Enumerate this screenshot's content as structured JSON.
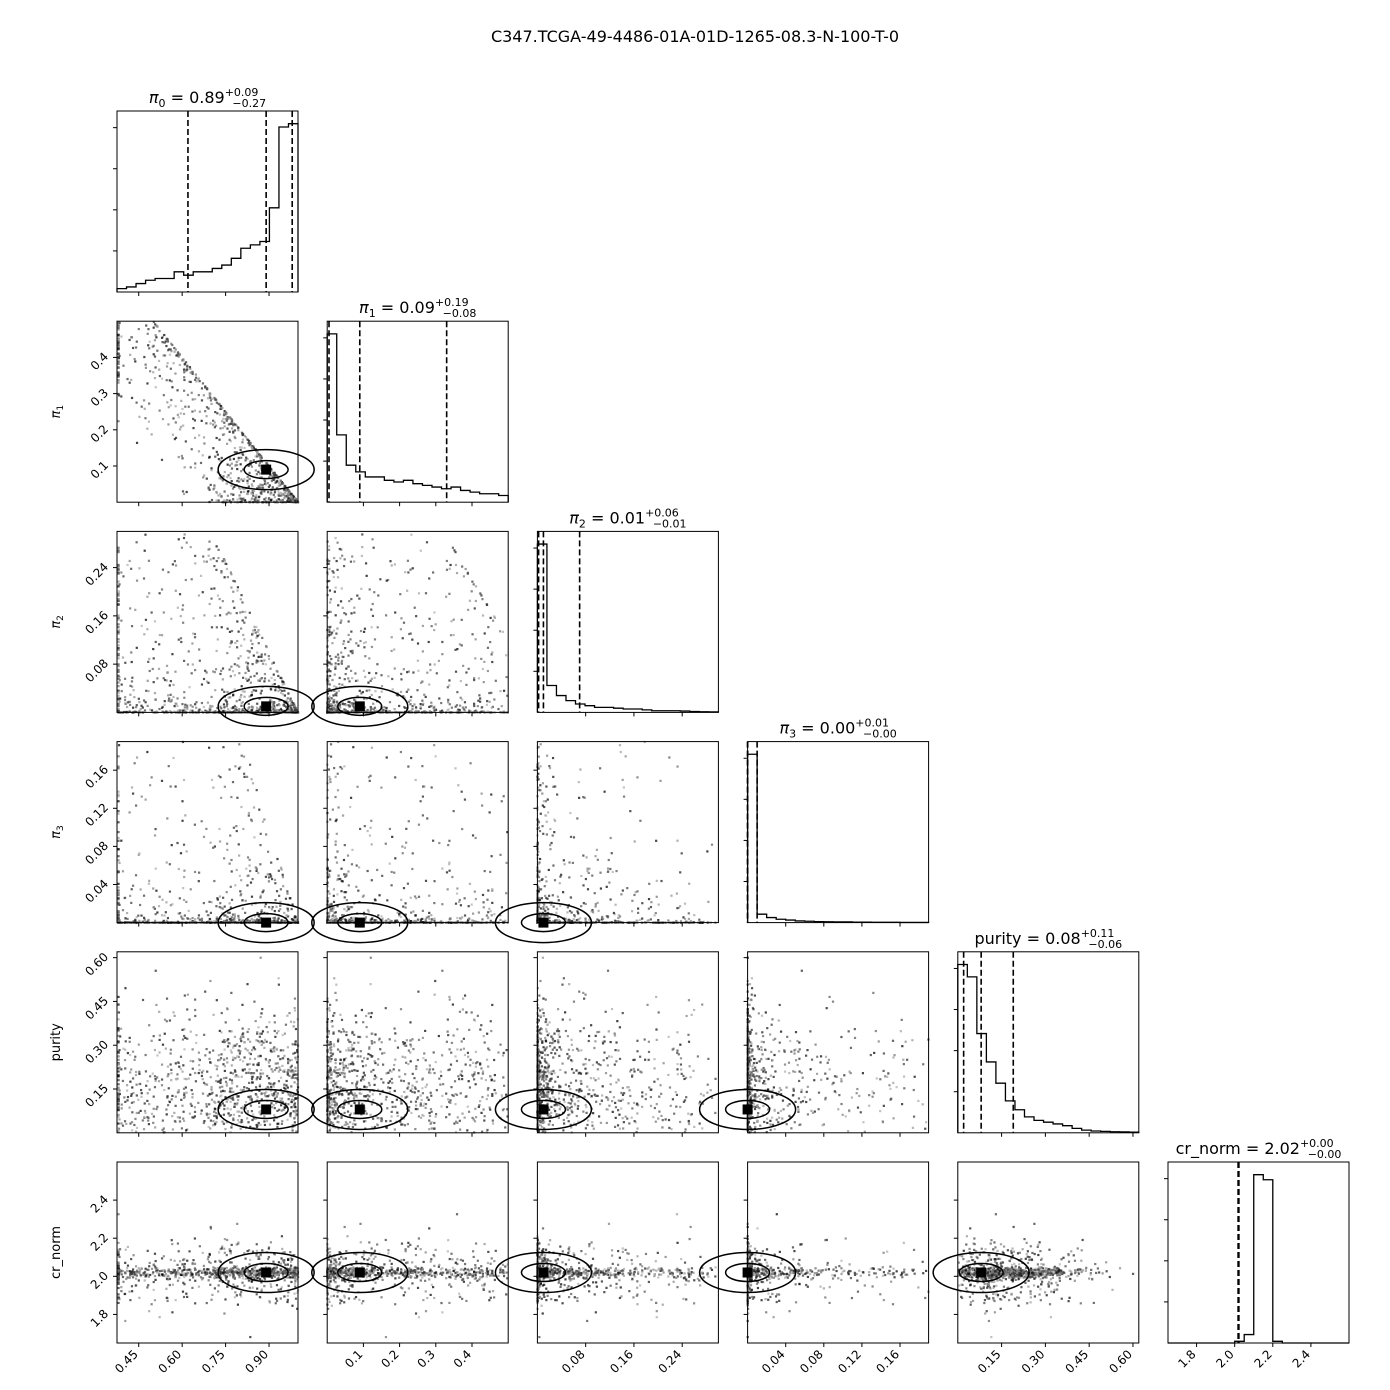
{
  "figure": {
    "title": "C347.TCGA-49-4486-01A-01D-1265-08.3-N-100-T-0"
  },
  "chart_data": {
    "type": "corner",
    "parameters": [
      {
        "key": "pi0",
        "symbol": "π",
        "sub": "0",
        "label": "π0",
        "range": [
          0.375,
          1.0
        ],
        "ticks": [
          0.45,
          0.6,
          0.75,
          0.9
        ],
        "tick_labels": [
          "0.45",
          "0.60",
          "0.75",
          "0.90"
        ],
        "median": "0.89",
        "plus": "+0.09",
        "minus": "−0.27",
        "quantiles": [
          0.62,
          0.89,
          0.98
        ],
        "hist": [
          0.02,
          0.03,
          0.05,
          0.07,
          0.08,
          0.08,
          0.12,
          0.1,
          0.12,
          0.12,
          0.14,
          0.16,
          0.2,
          0.26,
          0.28,
          0.3,
          0.5,
          0.98,
          1.0
        ]
      },
      {
        "key": "pi1",
        "symbol": "π",
        "sub": "1",
        "label": "π1",
        "range": [
          0.0,
          0.5
        ],
        "ticks": [
          0.1,
          0.2,
          0.3,
          0.4
        ],
        "tick_labels": [
          "0.1",
          "0.2",
          "0.3",
          "0.4"
        ],
        "median": "0.09",
        "plus": "+0.19",
        "minus": "−0.08",
        "quantiles": [
          0.005,
          0.09,
          0.33
        ],
        "hist": [
          1.0,
          0.4,
          0.22,
          0.18,
          0.15,
          0.15,
          0.13,
          0.12,
          0.13,
          0.11,
          0.1,
          0.09,
          0.08,
          0.09,
          0.07,
          0.06,
          0.05,
          0.05,
          0.04
        ]
      },
      {
        "key": "pi2",
        "symbol": "π",
        "sub": "2",
        "label": "π2",
        "range": [
          0.0,
          0.3
        ],
        "ticks": [
          0.08,
          0.16,
          0.24
        ],
        "tick_labels": [
          "0.08",
          "0.16",
          "0.24"
        ],
        "median": "0.01",
        "plus": "+0.06",
        "minus": "−0.01",
        "quantiles": [
          0.002,
          0.01,
          0.07
        ],
        "hist": [
          1.0,
          0.16,
          0.1,
          0.07,
          0.05,
          0.04,
          0.03,
          0.03,
          0.025,
          0.02,
          0.02,
          0.015,
          0.01,
          0.01,
          0.01,
          0.008,
          0.005,
          0.004,
          0.003
        ]
      },
      {
        "key": "pi3",
        "symbol": "π",
        "sub": "3",
        "label": "π3",
        "range": [
          0.0,
          0.19
        ],
        "ticks": [
          0.04,
          0.08,
          0.12,
          0.16
        ],
        "tick_labels": [
          "0.04",
          "0.08",
          "0.12",
          "0.16"
        ],
        "median": "0.00",
        "plus": "+0.01",
        "minus": "−0.00",
        "quantiles": [
          0.0,
          0.0,
          0.01
        ],
        "hist": [
          1.0,
          0.05,
          0.03,
          0.02,
          0.015,
          0.01,
          0.008,
          0.006,
          0.005,
          0.004,
          0.004,
          0.003,
          0.003,
          0.002,
          0.002,
          0.002,
          0.001,
          0.001,
          0.001
        ]
      },
      {
        "key": "purity",
        "label": "purity",
        "range": [
          0.0,
          0.62
        ],
        "ticks": [
          0.15,
          0.3,
          0.45,
          0.6
        ],
        "tick_labels": [
          "0.15",
          "0.30",
          "0.45",
          "0.60"
        ],
        "median": "0.08",
        "plus": "+0.11",
        "minus": "−0.06",
        "quantiles": [
          0.02,
          0.08,
          0.19
        ],
        "hist": [
          0.95,
          0.88,
          0.56,
          0.4,
          0.28,
          0.18,
          0.13,
          0.09,
          0.07,
          0.06,
          0.05,
          0.04,
          0.025,
          0.015,
          0.01,
          0.008,
          0.006,
          0.005,
          0.004
        ]
      },
      {
        "key": "cr_norm",
        "label": "cr_norm",
        "range": [
          1.65,
          2.6
        ],
        "ticks": [
          1.8,
          2.0,
          2.2,
          2.4
        ],
        "tick_labels": [
          "1.8",
          "2.0",
          "2.2",
          "2.4"
        ],
        "median": "2.02",
        "plus": "+0.00",
        "minus": "−0.00",
        "quantiles": [
          2.018,
          2.02,
          2.022
        ],
        "hist": [
          0.0,
          0.0,
          0.0,
          0.0,
          0.0,
          0.0,
          0.0,
          0.01,
          0.05,
          1.0,
          0.97,
          0.01,
          0.0,
          0.0,
          0.0,
          0.0,
          0.0,
          0.0,
          0.0
        ]
      }
    ],
    "pair_samples_per_panel": 900,
    "contour_levels": 2,
    "colors": {
      "points": "#000000",
      "line": "#000000",
      "background": "#ffffff"
    }
  }
}
